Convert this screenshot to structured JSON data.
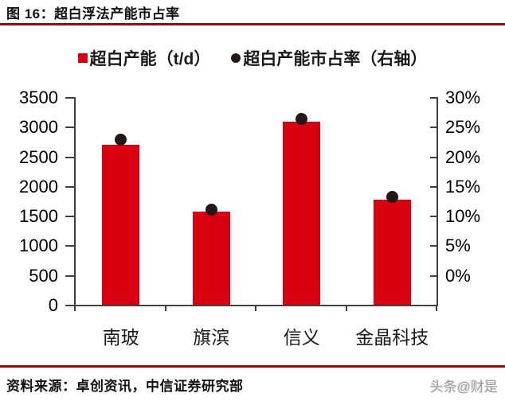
{
  "header": {
    "title": "图 16：超白浮法产能市占率"
  },
  "legend": [
    {
      "label": "超白产能（t/d）",
      "marker": "square"
    },
    {
      "label": "超白产能市占率（右轴）",
      "marker": "circle"
    }
  ],
  "chart_data": {
    "type": "bar",
    "subtype": "bar + scatter, dual axis",
    "title": "超白浮法产能市占率",
    "categories": [
      "南玻",
      "旗滨",
      "信义",
      "金晶科技"
    ],
    "series": [
      {
        "name": "超白产能（t/d）",
        "type": "bar",
        "axis": "left",
        "values": [
          2700,
          1570,
          3080,
          1770
        ]
      },
      {
        "name": "超白产能市占率（右轴）",
        "type": "scatter",
        "axis": "right",
        "values": [
          23.8,
          13.7,
          26.8,
          15.6
        ],
        "unit": "%"
      }
    ],
    "left_axis": {
      "min": 0,
      "max": 3500,
      "step": 500,
      "ticks": [
        "3500",
        "3000",
        "2500",
        "2000",
        "1500",
        "1000",
        "500",
        "0"
      ]
    },
    "right_axis": {
      "min": 0,
      "max": 30,
      "step": 5,
      "unit": "%",
      "ticks": [
        "30%",
        "25%",
        "20%",
        "15%",
        "10%",
        "5%",
        "0%"
      ]
    },
    "grid": false,
    "legend_position": "top"
  },
  "footer": {
    "source": "资料来源：卓创资讯，中信证券研究部",
    "watermark": "头条@财是"
  },
  "colors": {
    "bar": "#d9000f",
    "dot": "#231815",
    "rule": "#a00508",
    "axis": "#3f3f3f",
    "legend_square": "#d9000f",
    "legend_circle": "#231815"
  }
}
